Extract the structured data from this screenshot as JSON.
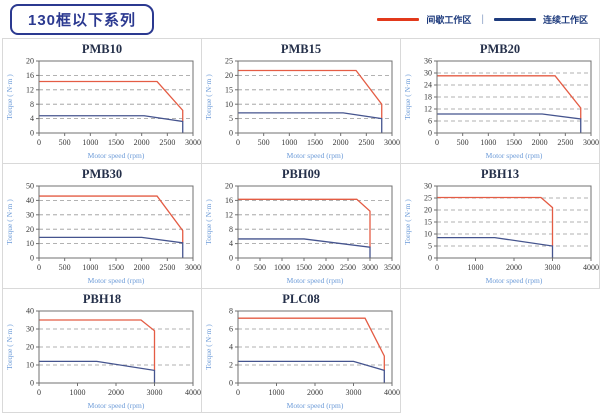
{
  "header": {
    "title": "130框以下系列"
  },
  "legend": {
    "items": [
      {
        "label": "间歇工作区",
        "color": "#E2391B"
      },
      {
        "label": "连续工作区",
        "color": "#1E3B7D"
      }
    ],
    "separator": "|"
  },
  "colors": {
    "curve_red": "#E45C44",
    "curve_blue": "#45548E",
    "grid_line": "#999999",
    "plot_border": "#707070",
    "cell_border": "#D9D9D9",
    "header_navy": "#2B3990",
    "axis_label_blue": "#6C9BD8",
    "tick_text": "#3A3A3A",
    "title_text": "#25304A"
  },
  "chart_data": [
    {
      "type": "line",
      "title": "PMB10",
      "xlabel": "Motor speed (rpm)",
      "ylabel": "Torque ( N·m )",
      "xlim": [
        0,
        3000
      ],
      "xstep": 500,
      "ylim": [
        0,
        20
      ],
      "ystep": 4,
      "grid": true,
      "series": [
        {
          "name": "间歇工作区",
          "color": "#E45C44",
          "points": [
            [
              0,
              14.3
            ],
            [
              2300,
              14.3
            ],
            [
              2800,
              6.3
            ],
            [
              2800,
              3.2
            ]
          ]
        },
        {
          "name": "连续工作区",
          "color": "#45548E",
          "points": [
            [
              0,
              4.8
            ],
            [
              2050,
              4.8
            ],
            [
              2800,
              3.2
            ],
            [
              2800,
              0
            ]
          ]
        }
      ]
    },
    {
      "type": "line",
      "title": "PMB15",
      "xlabel": "Motor speed (rpm)",
      "ylabel": "Torque ( N·m )",
      "xlim": [
        0,
        3000
      ],
      "xstep": 500,
      "ylim": [
        0,
        25
      ],
      "ystep": 5,
      "grid": true,
      "series": [
        {
          "name": "间歇工作区",
          "color": "#E45C44",
          "points": [
            [
              0,
              21.7
            ],
            [
              2300,
              21.7
            ],
            [
              2800,
              10
            ],
            [
              2800,
              5
            ]
          ]
        },
        {
          "name": "连续工作区",
          "color": "#45548E",
          "points": [
            [
              0,
              7
            ],
            [
              2050,
              7
            ],
            [
              2800,
              5
            ],
            [
              2800,
              0
            ]
          ]
        }
      ]
    },
    {
      "type": "line",
      "title": "PMB20",
      "xlabel": "Motor speed (rpm)",
      "ylabel": "Torque ( N·m )",
      "xlim": [
        0,
        3000
      ],
      "xstep": 500,
      "ylim": [
        0,
        36
      ],
      "ystep": 6,
      "grid": true,
      "series": [
        {
          "name": "间歇工作区",
          "color": "#E45C44",
          "points": [
            [
              0,
              28.6
            ],
            [
              2300,
              28.6
            ],
            [
              2800,
              12.5
            ],
            [
              2800,
              7
            ]
          ]
        },
        {
          "name": "连续工作区",
          "color": "#45548E",
          "points": [
            [
              0,
              9.5
            ],
            [
              2050,
              9.5
            ],
            [
              2800,
              7
            ],
            [
              2800,
              0
            ]
          ]
        }
      ]
    },
    {
      "type": "line",
      "title": "PMB30",
      "xlabel": "Motor speed (rpm)",
      "ylabel": "Torque ( N·m )",
      "xlim": [
        0,
        3000
      ],
      "xstep": 500,
      "ylim": [
        0,
        50
      ],
      "ystep": 10,
      "grid": true,
      "series": [
        {
          "name": "间歇工作区",
          "color": "#E45C44",
          "points": [
            [
              0,
              43
            ],
            [
              2300,
              43
            ],
            [
              2800,
              19
            ],
            [
              2800,
              10.5
            ]
          ]
        },
        {
          "name": "连续工作区",
          "color": "#45548E",
          "points": [
            [
              0,
              14.3
            ],
            [
              2000,
              14.3
            ],
            [
              2800,
              10.5
            ],
            [
              2800,
              0
            ]
          ]
        }
      ]
    },
    {
      "type": "line",
      "title": "PBH09",
      "xlabel": "Motor speed (rpm)",
      "ylabel": "Torque ( N·m )",
      "xlim": [
        0,
        3500
      ],
      "xstep": 500,
      "ylim": [
        0,
        20
      ],
      "ystep": 4,
      "grid": true,
      "series": [
        {
          "name": "间歇工作区",
          "color": "#E45C44",
          "points": [
            [
              0,
              16.3
            ],
            [
              2700,
              16.3
            ],
            [
              3000,
              13
            ],
            [
              3000,
              3
            ]
          ]
        },
        {
          "name": "连续工作区",
          "color": "#45548E",
          "points": [
            [
              0,
              5.3
            ],
            [
              1500,
              5.3
            ],
            [
              3000,
              3
            ],
            [
              3000,
              0
            ]
          ]
        }
      ]
    },
    {
      "type": "line",
      "title": "PBH13",
      "xlabel": "Motor speed (rpm)",
      "ylabel": "Torque ( N·m )",
      "xlim": [
        0,
        4000
      ],
      "xstep": 1000,
      "ylim": [
        0,
        30
      ],
      "ystep": 5,
      "grid": true,
      "series": [
        {
          "name": "间歇工作区",
          "color": "#E45C44",
          "points": [
            [
              0,
              25.2
            ],
            [
              2700,
              25.2
            ],
            [
              3000,
              21
            ],
            [
              3000,
              5
            ]
          ]
        },
        {
          "name": "连续工作区",
          "color": "#45548E",
          "points": [
            [
              0,
              8.5
            ],
            [
              1500,
              8.5
            ],
            [
              3000,
              5
            ],
            [
              3000,
              0
            ]
          ]
        }
      ]
    },
    {
      "type": "line",
      "title": "PBH18",
      "xlabel": "Motor speed (rpm)",
      "ylabel": "Torque ( N·m )",
      "xlim": [
        0,
        4000
      ],
      "xstep": 1000,
      "ylim": [
        0,
        40
      ],
      "ystep": 10,
      "grid": true,
      "series": [
        {
          "name": "间歇工作区",
          "color": "#E45C44",
          "points": [
            [
              0,
              35
            ],
            [
              2650,
              35
            ],
            [
              3000,
              29
            ],
            [
              3000,
              7
            ]
          ]
        },
        {
          "name": "连续工作区",
          "color": "#45548E",
          "points": [
            [
              0,
              12
            ],
            [
              1500,
              12
            ],
            [
              3000,
              7
            ],
            [
              3000,
              0
            ]
          ]
        }
      ]
    },
    {
      "type": "line",
      "title": "PLC08",
      "xlabel": "Motor speed (rpm)",
      "ylabel": "Torque ( N·m )",
      "xlim": [
        0,
        4000
      ],
      "xstep": 1000,
      "ylim": [
        0,
        8
      ],
      "ystep": 2,
      "grid": true,
      "series": [
        {
          "name": "间歇工作区",
          "color": "#E45C44",
          "points": [
            [
              0,
              7.2
            ],
            [
              3300,
              7.2
            ],
            [
              3800,
              3
            ],
            [
              3800,
              1.4
            ]
          ]
        },
        {
          "name": "连续工作区",
          "color": "#45548E",
          "points": [
            [
              0,
              2.4
            ],
            [
              3000,
              2.4
            ],
            [
              3800,
              1.4
            ],
            [
              3800,
              0
            ]
          ]
        }
      ]
    }
  ]
}
